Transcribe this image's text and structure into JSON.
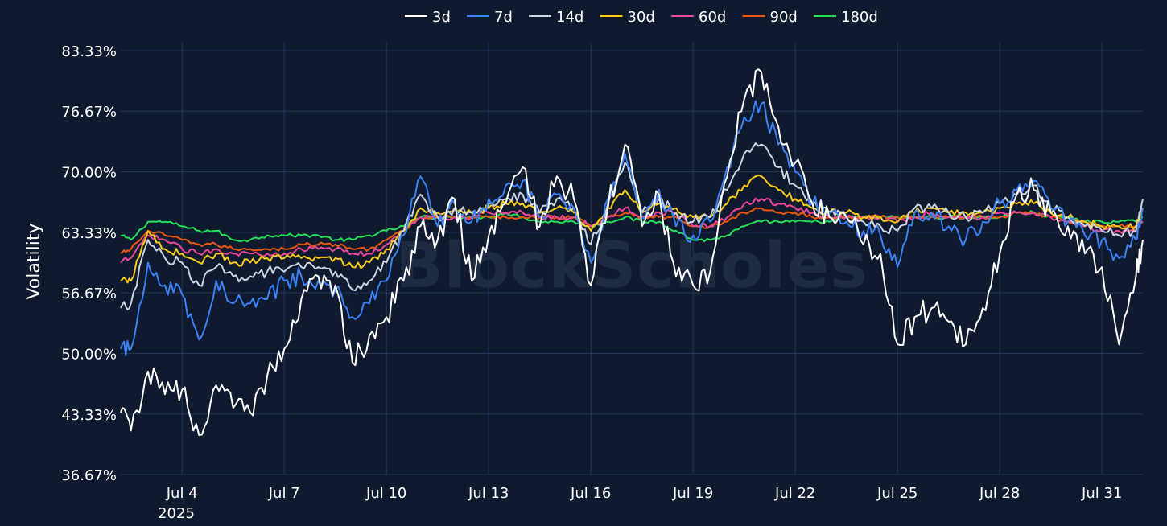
{
  "colors": {
    "background": "#0f1a2e",
    "grid": "#25365a",
    "text": "#ffffff"
  },
  "watermark": "BlockScholes",
  "chart_data": {
    "type": "line",
    "ylabel": "Volatility",
    "ylim": [
      36.67,
      83.33
    ],
    "y_ticks": [
      "83.33%",
      "76.67%",
      "70.00%",
      "63.33%",
      "56.67%",
      "50.00%",
      "43.33%",
      "36.67%"
    ],
    "y_tick_values": [
      83.33,
      76.67,
      70.0,
      63.33,
      56.67,
      50.0,
      43.33,
      36.67
    ],
    "xlim": [
      2.2,
      32.2
    ],
    "x_ticks": [
      "Jul 4",
      "Jul 7",
      "Jul 10",
      "Jul 13",
      "Jul 16",
      "Jul 19",
      "Jul 22",
      "Jul 25",
      "Jul 28",
      "Jul 31"
    ],
    "x_tick_values": [
      4,
      7,
      10,
      13,
      16,
      19,
      22,
      25,
      28,
      31
    ],
    "x_year_label": "2025",
    "grid": true,
    "legend_position": "top-center",
    "x": [
      2.2,
      2.5,
      3.0,
      3.5,
      4.0,
      4.5,
      5.0,
      5.5,
      6.0,
      6.5,
      7.0,
      7.5,
      8.0,
      8.5,
      9.0,
      9.5,
      10.0,
      10.5,
      11.0,
      11.5,
      12.0,
      12.5,
      13.0,
      13.5,
      14.0,
      14.5,
      15.0,
      15.5,
      16.0,
      16.5,
      17.0,
      17.5,
      18.0,
      18.5,
      19.0,
      19.5,
      20.0,
      20.5,
      21.0,
      21.5,
      22.0,
      22.5,
      23.0,
      23.5,
      24.0,
      24.5,
      25.0,
      25.5,
      26.0,
      26.5,
      27.0,
      27.5,
      28.0,
      28.5,
      29.0,
      29.5,
      30.0,
      30.5,
      31.0,
      31.5,
      32.0,
      32.2
    ],
    "series": [
      {
        "name": "3d",
        "color": "#ffffff",
        "values": [
          43.5,
          41.5,
          48.0,
          45.5,
          46.0,
          41.0,
          46.5,
          44.0,
          43.5,
          47.5,
          50.5,
          56.0,
          58.5,
          57.5,
          49.0,
          52.0,
          54.0,
          58.0,
          64.0,
          62.5,
          67.0,
          58.0,
          63.0,
          66.5,
          70.5,
          64.0,
          69.5,
          67.0,
          57.5,
          66.0,
          73.0,
          64.0,
          67.5,
          58.5,
          57.5,
          59.0,
          69.5,
          78.0,
          81.0,
          75.0,
          71.0,
          66.5,
          65.0,
          65.0,
          62.0,
          61.0,
          51.0,
          54.0,
          55.0,
          53.5,
          51.0,
          55.0,
          61.0,
          67.5,
          68.0,
          65.5,
          64.0,
          61.0,
          59.5,
          51.0,
          58.5,
          62.5
        ]
      },
      {
        "name": "7d",
        "color": "#3b82f6",
        "values": [
          50.5,
          50.5,
          60.0,
          57.5,
          56.5,
          51.5,
          58.0,
          55.5,
          55.5,
          56.0,
          58.0,
          58.5,
          58.0,
          57.0,
          54.0,
          55.5,
          58.0,
          63.0,
          69.5,
          64.0,
          66.5,
          64.5,
          67.0,
          68.5,
          69.0,
          65.0,
          67.5,
          66.0,
          60.0,
          67.0,
          72.0,
          65.0,
          68.0,
          64.0,
          63.0,
          64.5,
          70.5,
          76.0,
          77.5,
          73.0,
          70.0,
          66.5,
          65.5,
          64.5,
          63.5,
          63.0,
          59.5,
          65.5,
          65.5,
          64.0,
          62.5,
          64.5,
          66.5,
          68.0,
          69.0,
          66.0,
          64.5,
          63.0,
          62.5,
          60.5,
          62.5,
          66.0
        ]
      },
      {
        "name": "14d",
        "color": "#cbd5e1",
        "values": [
          55.0,
          55.5,
          62.5,
          60.5,
          60.0,
          57.5,
          59.5,
          58.5,
          58.5,
          59.0,
          59.0,
          59.5,
          59.5,
          59.0,
          57.0,
          58.0,
          60.0,
          63.5,
          67.5,
          65.0,
          66.0,
          65.5,
          66.5,
          67.0,
          67.5,
          65.5,
          67.0,
          66.0,
          62.0,
          66.5,
          71.0,
          65.5,
          67.0,
          65.5,
          64.5,
          65.0,
          68.0,
          72.0,
          73.0,
          70.5,
          68.5,
          66.5,
          65.5,
          65.0,
          64.5,
          64.0,
          63.5,
          66.0,
          66.0,
          65.5,
          65.0,
          65.5,
          66.5,
          67.5,
          68.5,
          66.0,
          65.0,
          64.0,
          63.5,
          63.0,
          63.5,
          67.0
        ]
      },
      {
        "name": "30d",
        "color": "#facc15",
        "values": [
          58.0,
          58.0,
          63.5,
          61.5,
          61.0,
          60.0,
          61.0,
          60.0,
          60.0,
          60.5,
          60.5,
          60.5,
          60.5,
          60.5,
          59.5,
          60.0,
          61.5,
          63.5,
          66.0,
          65.5,
          66.0,
          65.5,
          66.0,
          66.5,
          66.5,
          65.5,
          66.0,
          65.5,
          63.5,
          66.0,
          68.0,
          65.5,
          66.5,
          66.0,
          65.0,
          65.0,
          66.5,
          68.5,
          69.5,
          68.0,
          67.0,
          66.0,
          65.5,
          65.5,
          65.0,
          65.0,
          64.5,
          65.5,
          66.0,
          65.5,
          65.5,
          65.5,
          66.0,
          66.5,
          66.5,
          65.5,
          65.0,
          64.5,
          64.0,
          64.0,
          64.0,
          66.0
        ]
      },
      {
        "name": "60d",
        "color": "#ec4899",
        "values": [
          60.0,
          60.5,
          63.0,
          62.5,
          61.5,
          61.0,
          61.5,
          61.0,
          61.0,
          61.0,
          61.0,
          61.5,
          61.5,
          61.5,
          61.0,
          61.0,
          62.0,
          63.5,
          65.0,
          65.0,
          65.0,
          65.0,
          65.5,
          65.5,
          65.5,
          65.0,
          65.0,
          65.0,
          64.0,
          65.0,
          66.0,
          65.0,
          65.5,
          65.5,
          64.0,
          64.0,
          65.0,
          66.5,
          67.0,
          66.5,
          66.0,
          65.5,
          65.0,
          65.0,
          65.0,
          65.0,
          64.5,
          65.0,
          65.5,
          65.0,
          65.0,
          65.0,
          65.5,
          65.5,
          65.5,
          65.0,
          64.5,
          64.0,
          63.5,
          63.5,
          63.5,
          64.5
        ]
      },
      {
        "name": "90d",
        "color": "#ea580c",
        "values": [
          61.0,
          61.5,
          63.5,
          63.0,
          62.5,
          62.0,
          62.0,
          61.5,
          61.5,
          61.5,
          61.5,
          62.0,
          62.0,
          62.0,
          61.5,
          61.5,
          62.5,
          63.5,
          65.0,
          65.0,
          65.0,
          65.0,
          65.0,
          65.0,
          65.0,
          65.0,
          65.0,
          65.0,
          64.0,
          65.0,
          65.5,
          65.0,
          65.0,
          65.0,
          64.0,
          64.0,
          64.5,
          65.5,
          66.0,
          65.5,
          65.5,
          65.0,
          65.0,
          65.0,
          65.0,
          65.0,
          65.0,
          65.0,
          65.0,
          65.0,
          65.0,
          65.0,
          65.0,
          65.5,
          65.5,
          65.0,
          64.5,
          64.5,
          64.0,
          64.0,
          64.0,
          64.5
        ]
      },
      {
        "name": "180d",
        "color": "#22e05a",
        "values": [
          63.0,
          62.5,
          64.5,
          64.5,
          64.0,
          63.5,
          63.5,
          62.5,
          62.5,
          63.0,
          63.0,
          63.0,
          63.0,
          62.5,
          62.5,
          63.0,
          63.5,
          64.0,
          65.0,
          65.0,
          65.0,
          65.0,
          65.0,
          65.5,
          65.0,
          64.5,
          64.5,
          64.5,
          64.0,
          64.5,
          65.0,
          64.5,
          64.5,
          63.5,
          62.5,
          62.5,
          63.0,
          64.0,
          64.5,
          64.5,
          64.5,
          64.5,
          64.5,
          65.0,
          65.0,
          65.0,
          65.0,
          65.0,
          65.0,
          65.0,
          65.0,
          65.0,
          65.0,
          65.5,
          65.5,
          65.0,
          65.0,
          64.5,
          64.5,
          64.5,
          64.5,
          65.0
        ]
      }
    ]
  }
}
